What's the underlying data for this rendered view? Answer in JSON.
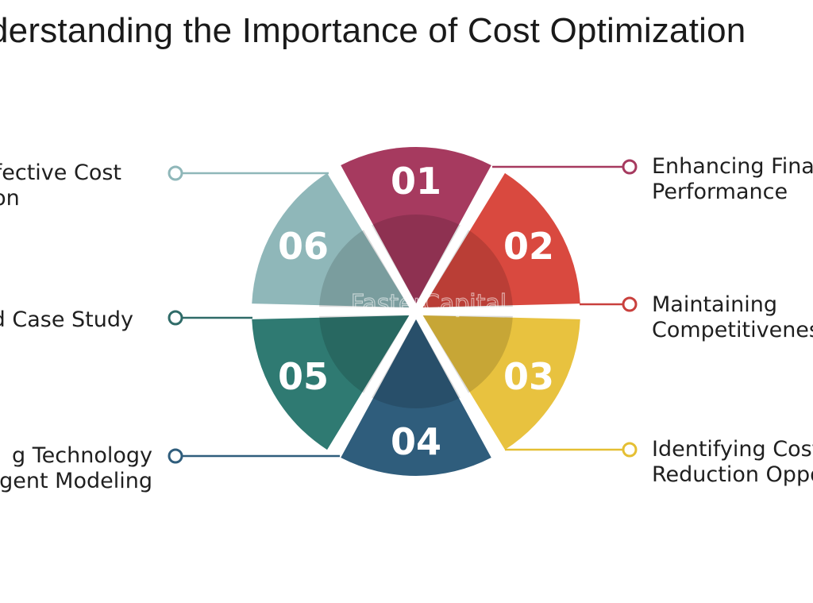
{
  "title": "derstanding the Importance of Cost Optimization",
  "watermark": "FasterCapital",
  "segments": [
    {
      "number": "01",
      "color": "#a63a5f",
      "dot_color": "#a63a5f",
      "label_lines": [
        "Enhancing Finan",
        "Performance"
      ]
    },
    {
      "number": "02",
      "color": "#d9493f",
      "dot_color": "#c9403d",
      "label_lines": [
        "Maintaining",
        "Competitiveness"
      ]
    },
    {
      "number": "03",
      "color": "#e8c23f",
      "dot_color": "#e5bf33",
      "label_lines": [
        "Identifying Cost",
        "Reduction Oppo"
      ]
    },
    {
      "number": "04",
      "color": "#2f5d7c",
      "dot_color": "#2f5d7c",
      "label_lines": [
        "g Technology",
        "igent Modeling"
      ]
    },
    {
      "number": "05",
      "color": "#2f7a72",
      "dot_color": "#2f6b68",
      "label_lines": [
        "d Case Study"
      ]
    },
    {
      "number": "06",
      "color": "#8fb7b9",
      "dot_color": "#8fb7b9",
      "label_lines": [
        "ffective Cost",
        "ion"
      ]
    }
  ]
}
